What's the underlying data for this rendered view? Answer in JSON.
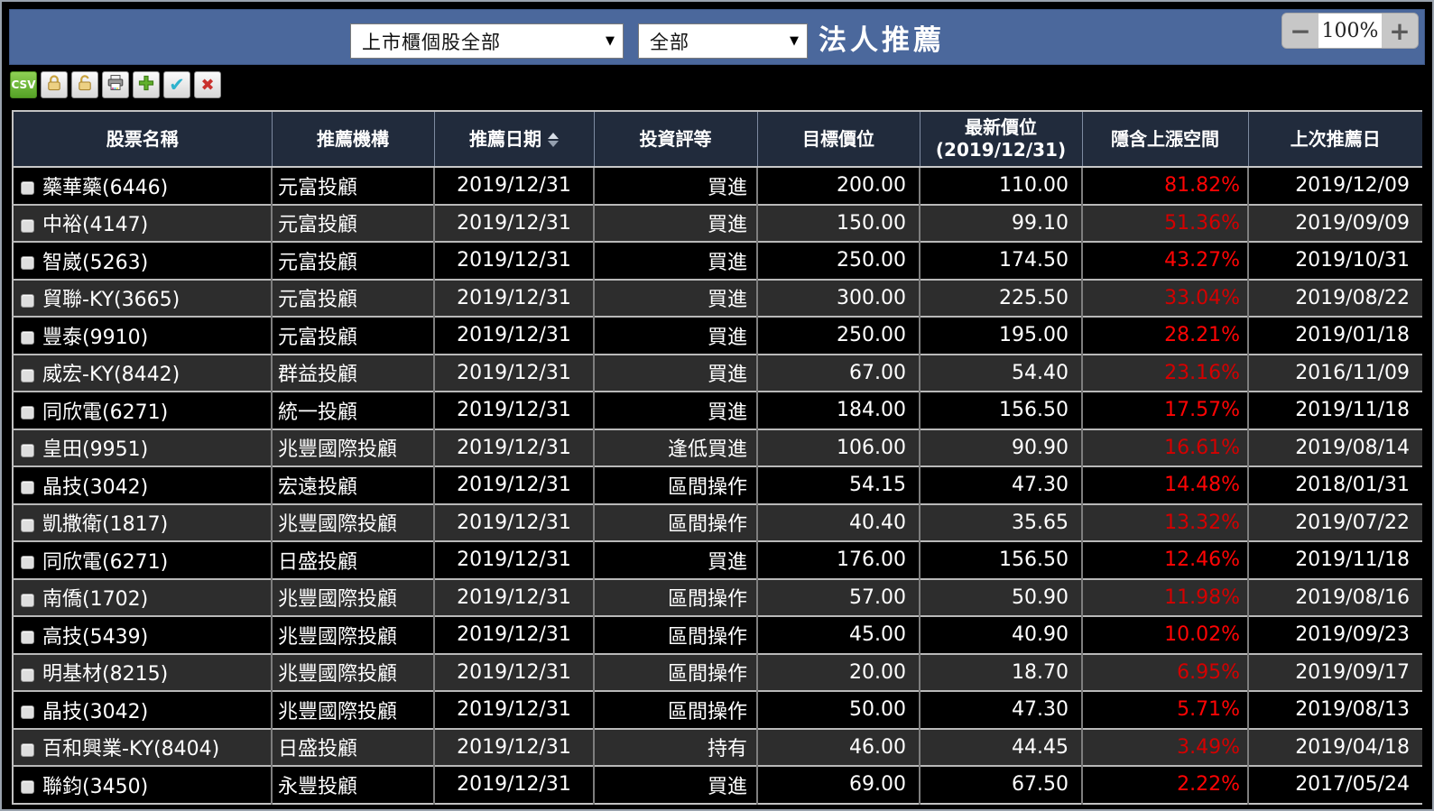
{
  "top_bar": {
    "market_select": {
      "value": "上市櫃個股全部",
      "arrow": "▼"
    },
    "category_select": {
      "value": "全部",
      "arrow": "▼"
    },
    "title": "法人推薦",
    "zoom_control": {
      "zoom_out": "−",
      "level": "100%",
      "zoom_in": "+"
    }
  },
  "toolbar": {
    "csv_label": "CSV",
    "check_glyph": "✔",
    "x_glyph": "✖",
    "buttons": [
      "export-csv",
      "lock",
      "unlock",
      "print",
      "add",
      "confirm",
      "delete"
    ]
  },
  "table": {
    "columns": [
      {
        "label": "股票名稱"
      },
      {
        "label": "推薦機構"
      },
      {
        "label": "推薦日期",
        "sortable": true
      },
      {
        "label": "投資評等"
      },
      {
        "label": "目標價位"
      },
      {
        "label": "最新價位",
        "sub_label": "(2019/12/31)"
      },
      {
        "label": "隱含上漲空間"
      },
      {
        "label": "上次推薦日"
      }
    ],
    "rows": [
      {
        "name": "藥華藥(6446)",
        "org": "元富投顧",
        "date": "2019/12/31",
        "rating": "買進",
        "target": "200.00",
        "latest": "110.00",
        "upside": "81.82%",
        "last": "2019/12/09"
      },
      {
        "name": "中裕(4147)",
        "org": "元富投顧",
        "date": "2019/12/31",
        "rating": "買進",
        "target": "150.00",
        "latest": "99.10",
        "upside": "51.36%",
        "last": "2019/09/09"
      },
      {
        "name": "智崴(5263)",
        "org": "元富投顧",
        "date": "2019/12/31",
        "rating": "買進",
        "target": "250.00",
        "latest": "174.50",
        "upside": "43.27%",
        "last": "2019/10/31"
      },
      {
        "name": "貿聯-KY(3665)",
        "org": "元富投顧",
        "date": "2019/12/31",
        "rating": "買進",
        "target": "300.00",
        "latest": "225.50",
        "upside": "33.04%",
        "last": "2019/08/22"
      },
      {
        "name": "豐泰(9910)",
        "org": "元富投顧",
        "date": "2019/12/31",
        "rating": "買進",
        "target": "250.00",
        "latest": "195.00",
        "upside": "28.21%",
        "last": "2019/01/18"
      },
      {
        "name": "威宏-KY(8442)",
        "org": "群益投顧",
        "date": "2019/12/31",
        "rating": "買進",
        "target": "67.00",
        "latest": "54.40",
        "upside": "23.16%",
        "last": "2016/11/09"
      },
      {
        "name": "同欣電(6271)",
        "org": "統一投顧",
        "date": "2019/12/31",
        "rating": "買進",
        "target": "184.00",
        "latest": "156.50",
        "upside": "17.57%",
        "last": "2019/11/18"
      },
      {
        "name": "皇田(9951)",
        "org": "兆豐國際投顧",
        "date": "2019/12/31",
        "rating": "逢低買進",
        "target": "106.00",
        "latest": "90.90",
        "upside": "16.61%",
        "last": "2019/08/14"
      },
      {
        "name": "晶技(3042)",
        "org": "宏遠投顧",
        "date": "2019/12/31",
        "rating": "區間操作",
        "target": "54.15",
        "latest": "47.30",
        "upside": "14.48%",
        "last": "2018/01/31"
      },
      {
        "name": "凱撒衛(1817)",
        "org": "兆豐國際投顧",
        "date": "2019/12/31",
        "rating": "區間操作",
        "target": "40.40",
        "latest": "35.65",
        "upside": "13.32%",
        "last": "2019/07/22"
      },
      {
        "name": "同欣電(6271)",
        "org": "日盛投顧",
        "date": "2019/12/31",
        "rating": "買進",
        "target": "176.00",
        "latest": "156.50",
        "upside": "12.46%",
        "last": "2019/11/18"
      },
      {
        "name": "南僑(1702)",
        "org": "兆豐國際投顧",
        "date": "2019/12/31",
        "rating": "區間操作",
        "target": "57.00",
        "latest": "50.90",
        "upside": "11.98%",
        "last": "2019/08/16"
      },
      {
        "name": "高技(5439)",
        "org": "兆豐國際投顧",
        "date": "2019/12/31",
        "rating": "區間操作",
        "target": "45.00",
        "latest": "40.90",
        "upside": "10.02%",
        "last": "2019/09/23"
      },
      {
        "name": "明基材(8215)",
        "org": "兆豐國際投顧",
        "date": "2019/12/31",
        "rating": "區間操作",
        "target": "20.00",
        "latest": "18.70",
        "upside": "6.95%",
        "last": "2019/09/17"
      },
      {
        "name": "晶技(3042)",
        "org": "兆豐國際投顧",
        "date": "2019/12/31",
        "rating": "區間操作",
        "target": "50.00",
        "latest": "47.30",
        "upside": "5.71%",
        "last": "2019/08/13"
      },
      {
        "name": "百和興業-KY(8404)",
        "org": "日盛投顧",
        "date": "2019/12/31",
        "rating": "持有",
        "target": "46.00",
        "latest": "44.45",
        "upside": "3.49%",
        "last": "2019/04/18"
      },
      {
        "name": "聯鈞(3450)",
        "org": "永豐投顧",
        "date": "2019/12/31",
        "rating": "買進",
        "target": "69.00",
        "latest": "67.50",
        "upside": "2.22%",
        "last": "2017/05/24"
      }
    ]
  },
  "colors": {
    "topbar_blue": "#4b689c",
    "header_navy": "#212b3c",
    "row_dark": "#000000",
    "row_alt": "#2d2d2d",
    "upside_red": "#ff0404",
    "csv_green": "#55a226"
  }
}
